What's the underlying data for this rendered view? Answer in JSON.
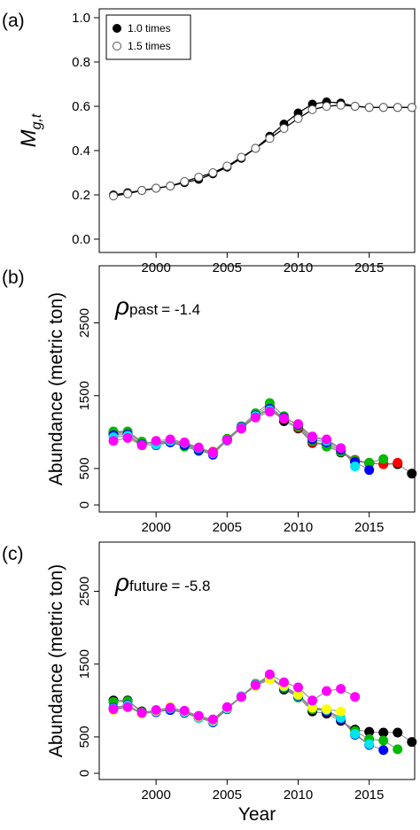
{
  "chart_data": [
    {
      "type": "line",
      "panel_label": "(a)",
      "ylabel": "M",
      "ylabel_sub": "g,t",
      "x": [
        1997,
        1998,
        1999,
        2000,
        2001,
        2002,
        2003,
        2004,
        2005,
        2006,
        2007,
        2008,
        2009,
        2010,
        2011,
        2012,
        2013,
        2014,
        2015,
        2016,
        2017,
        2018
      ],
      "xlim": [
        1996.0,
        2018.2
      ],
      "xticks": [
        2000,
        2005,
        2010,
        2015
      ],
      "ylim": [
        -0.06,
        1.04
      ],
      "yticks": [
        {
          "value": 0,
          "label": "0.0"
        },
        0.2,
        0.4,
        0.6,
        0.8,
        {
          "value": 1,
          "label": "1.0"
        }
      ],
      "line_color": "#000000",
      "legend": "top-left",
      "series": [
        {
          "name": "1.0 times",
          "color": "#000000",
          "marker": "filled",
          "values": [
            0.2,
            0.21,
            0.22,
            0.23,
            0.24,
            0.255,
            0.27,
            0.295,
            0.325,
            0.365,
            0.41,
            0.465,
            0.52,
            0.57,
            0.61,
            0.62,
            0.615,
            0.6,
            0.595,
            0.595,
            0.595,
            0.595
          ]
        },
        {
          "name": "1.5 times",
          "color": "#000000",
          "marker": "open",
          "values": [
            0.195,
            0.205,
            0.22,
            0.23,
            0.24,
            0.26,
            0.28,
            0.3,
            0.33,
            0.37,
            0.41,
            0.455,
            0.5,
            0.545,
            0.585,
            0.6,
            0.605,
            0.6,
            0.595,
            0.595,
            0.595,
            0.595
          ]
        }
      ]
    },
    {
      "type": "line",
      "panel_label": "(b)",
      "ylabel": "Abundance (metric ton)",
      "annotation_symbol": "ρ",
      "annotation_sub": "past",
      "annotation_text": "= -1.4",
      "x": [
        1997,
        1998,
        1999,
        2000,
        2001,
        2002,
        2003,
        2004,
        2005,
        2006,
        2007,
        2008,
        2009,
        2010,
        2011,
        2012,
        2013,
        2014,
        2015,
        2016,
        2017,
        2018
      ],
      "xlim": [
        1996.0,
        2018.2
      ],
      "xticks": [
        2000,
        2005,
        2010,
        2015
      ],
      "ylim": [
        -97,
        3285
      ],
      "yticks": [
        0,
        500,
        1500,
        2500
      ],
      "line_color": "#888888",
      "series": [
        {
          "color": "#000000",
          "values": [
            1000,
            1000,
            850,
            850,
            870,
            830,
            760,
            720,
            900,
            1050,
            1220,
            1330,
            1150,
            1050,
            850,
            820,
            720,
            600,
            570,
            560,
            560,
            430
          ]
        },
        {
          "color": "#ff0000",
          "values": [
            980,
            990,
            860,
            860,
            880,
            840,
            770,
            730,
            905,
            1060,
            1240,
            1360,
            1180,
            1060,
            860,
            840,
            740,
            620,
            580,
            560,
            580,
            null
          ]
        },
        {
          "color": "#00bb00",
          "values": [
            1010,
            1010,
            870,
            840,
            860,
            800,
            740,
            720,
            910,
            1080,
            1260,
            1400,
            1220,
            1080,
            880,
            800,
            730,
            610,
            580,
            630,
            null,
            null
          ]
        },
        {
          "color": "#0000ff",
          "values": [
            960,
            970,
            830,
            820,
            860,
            820,
            750,
            690,
            890,
            1070,
            1230,
            1320,
            1200,
            1100,
            900,
            860,
            760,
            590,
            480,
            null,
            null,
            null
          ]
        },
        {
          "color": "#00e5ee",
          "values": [
            930,
            950,
            820,
            830,
            880,
            850,
            780,
            710,
            880,
            1060,
            1220,
            1300,
            1190,
            1110,
            930,
            880,
            780,
            530,
            null,
            null,
            null,
            null
          ]
        },
        {
          "color": "#ff00ff",
          "values": [
            880,
            920,
            820,
            880,
            900,
            860,
            790,
            720,
            890,
            1050,
            1200,
            1280,
            1190,
            1110,
            940,
            900,
            780,
            null,
            null,
            null,
            null,
            null
          ]
        }
      ]
    },
    {
      "type": "line",
      "panel_label": "(c)",
      "ylabel": "Abundance (metric ton)",
      "xlabel": "Year",
      "annotation_symbol": "ρ",
      "annotation_sub": "future",
      "annotation_text": "= -5.8",
      "x": [
        1997,
        1998,
        1999,
        2000,
        2001,
        2002,
        2003,
        2004,
        2005,
        2006,
        2007,
        2008,
        2009,
        2010,
        2011,
        2012,
        2013,
        2014,
        2015,
        2016,
        2017,
        2018
      ],
      "xlim": [
        1996.0,
        2018.2
      ],
      "xticks": [
        2000,
        2005,
        2010,
        2015
      ],
      "ylim": [
        -85,
        3175
      ],
      "yticks": [
        0,
        500,
        1500,
        2500
      ],
      "line_color": "#888888",
      "series": [
        {
          "color": "#000000",
          "values": [
            1000,
            1000,
            850,
            850,
            870,
            830,
            760,
            720,
            900,
            1050,
            1220,
            1330,
            1150,
            1050,
            850,
            820,
            720,
            600,
            570,
            560,
            560,
            430
          ]
        },
        {
          "color": "#00bb00",
          "values": [
            980,
            990,
            840,
            850,
            880,
            840,
            770,
            720,
            900,
            1060,
            1230,
            1340,
            1170,
            1040,
            880,
            860,
            740,
            580,
            470,
            450,
            330,
            null
          ]
        },
        {
          "color": "#0000ff",
          "values": [
            900,
            940,
            820,
            840,
            870,
            830,
            760,
            700,
            880,
            1050,
            1220,
            1300,
            1180,
            1060,
            900,
            850,
            740,
            530,
            390,
            320,
            null,
            null
          ]
        },
        {
          "color": "#00e5ee",
          "values": [
            890,
            930,
            830,
            850,
            890,
            840,
            760,
            710,
            890,
            1060,
            1220,
            1310,
            1190,
            1070,
            910,
            870,
            760,
            540,
            400,
            null,
            null,
            null
          ]
        },
        {
          "color": "#ffff00",
          "values": [
            870,
            910,
            820,
            860,
            910,
            850,
            780,
            730,
            900,
            1050,
            1200,
            1290,
            1200,
            1080,
            900,
            880,
            850,
            null,
            null,
            null,
            null,
            null
          ]
        },
        {
          "color": "#ff00ff",
          "values": [
            880,
            910,
            830,
            870,
            900,
            860,
            790,
            740,
            910,
            1050,
            1210,
            1360,
            1250,
            1180,
            1000,
            1130,
            1160,
            1050,
            null,
            null,
            null,
            null
          ]
        }
      ]
    }
  ]
}
